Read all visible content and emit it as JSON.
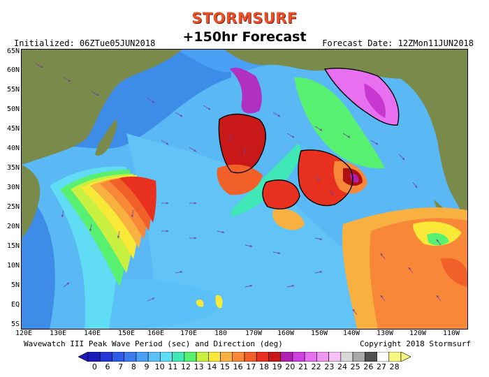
{
  "brand": "STORMSURF",
  "subtitle": "+150hr Forecast",
  "initialized": "Initialized: 06ZTue05JUN2018",
  "forecast_date": "Forecast Date: 12ZMon11JUN2018",
  "footer_left": "Wavewatch III Peak Wave Period (sec) and Direction (deg)",
  "footer_right": "Copyright 2018 Stormsurf",
  "lat_labels": [
    "65N",
    "60N",
    "55N",
    "50N",
    "45N",
    "40N",
    "35N",
    "30N",
    "25N",
    "20N",
    "15N",
    "10N",
    "5N",
    "EQ",
    "5S"
  ],
  "lon_labels": [
    "120E",
    "130E",
    "140E",
    "150E",
    "160E",
    "170E",
    "180",
    "170W",
    "160W",
    "150W",
    "140W",
    "130W",
    "120W",
    "110W"
  ],
  "colorbar": {
    "labels": [
      "0",
      "6",
      "7",
      "8",
      "9",
      "10",
      "11",
      "12",
      "13",
      "14",
      "15",
      "16",
      "17",
      "18",
      "19",
      "20",
      "21",
      "22",
      "23",
      "24",
      "25",
      "26",
      "27",
      "28"
    ],
    "colors": [
      "#1a1ab8",
      "#2436d6",
      "#2e5ae8",
      "#3a7cf0",
      "#4aa0f4",
      "#5cc0f8",
      "#60dcf4",
      "#40e8b8",
      "#58f070",
      "#c8f040",
      "#f8e838",
      "#f8b040",
      "#f88838",
      "#f06028",
      "#e83020",
      "#c81818",
      "#b020b0",
      "#d040e0",
      "#e870f0",
      "#f098f0",
      "#f8c0f8",
      "#d8d8d8",
      "#a8a8a8",
      "#505050",
      "#ffffff",
      "#f8f880"
    ]
  }
}
